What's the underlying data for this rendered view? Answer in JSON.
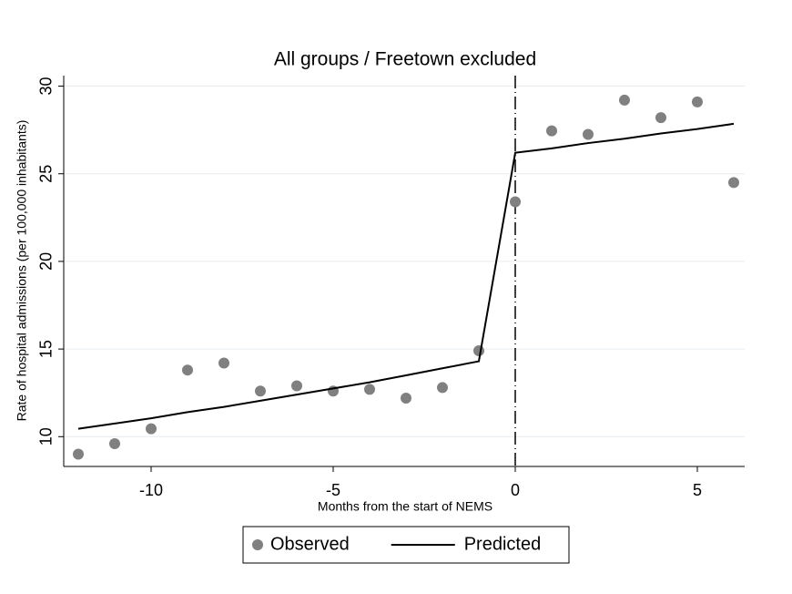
{
  "chart_data": {
    "type": "scatter-line",
    "title": "All groups / Freetown excluded",
    "x_label": "Months from the start of NEMS",
    "y_label": "Rate of hospital admissions (per 100,000 inhabitants)",
    "x": [
      -12,
      -11,
      -10,
      -9,
      -8,
      -7,
      -6,
      -5,
      -4,
      -3,
      -2,
      -1,
      0,
      1,
      2,
      3,
      4,
      5,
      6
    ],
    "series": [
      {
        "name": "Observed",
        "type": "scatter",
        "color": "#808080",
        "values": [
          9.0,
          9.6,
          10.45,
          13.8,
          14.2,
          12.6,
          12.9,
          12.6,
          12.7,
          12.2,
          12.8,
          14.9,
          23.4,
          27.45,
          27.25,
          29.2,
          28.2,
          29.1,
          24.5
        ]
      },
      {
        "name": "Predicted",
        "type": "line",
        "color": "#000000",
        "values": [
          10.45,
          10.75,
          11.05,
          11.4,
          11.7,
          12.05,
          12.4,
          12.75,
          13.1,
          13.5,
          13.9,
          14.3,
          26.2,
          26.45,
          26.75,
          27.0,
          27.3,
          27.55,
          27.85
        ]
      }
    ],
    "vline": 0,
    "xlim": [
      -12.4,
      6.3
    ],
    "ylim": [
      8.3,
      30.6
    ],
    "xticks": [
      -10,
      -5,
      0,
      5
    ],
    "yticks": [
      10,
      15,
      20,
      25,
      30
    ],
    "grid": true,
    "legend": "bottom"
  }
}
